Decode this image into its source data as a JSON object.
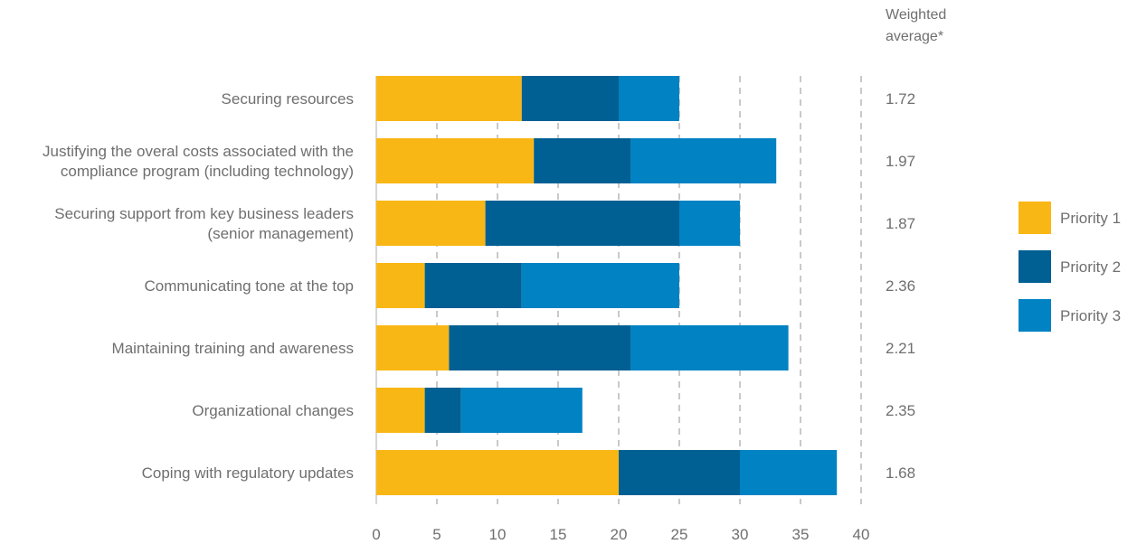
{
  "chart_data": {
    "type": "bar",
    "orientation": "horizontal",
    "stacked": true,
    "categories": [
      [
        "Securing resources"
      ],
      [
        "Justifying the overal costs associated with the",
        "compliance program (including technology)"
      ],
      [
        "Securing support from key business leaders",
        "(senior management)"
      ],
      [
        "Communicating tone at the top"
      ],
      [
        "Maintaining training and awareness"
      ],
      [
        "Organizational changes"
      ],
      [
        "Coping with regulatory updates"
      ]
    ],
    "series": [
      {
        "name": "Priority 1",
        "color": "#F9B715",
        "values": [
          12,
          13,
          9,
          4,
          6,
          4,
          20
        ]
      },
      {
        "name": "Priority 2",
        "color": "#005F93",
        "values": [
          8,
          8,
          16,
          8,
          15,
          3,
          10
        ]
      },
      {
        "name": "Priority 3",
        "color": "#0082C3",
        "values": [
          5,
          12,
          5,
          13,
          13,
          10,
          8
        ]
      }
    ],
    "xlim": [
      0,
      40
    ],
    "xticks": [
      "0",
      "5",
      "10",
      "15",
      "20",
      "25",
      "30",
      "35",
      "40"
    ],
    "grid": true,
    "legend_position": "right",
    "weighted_average": {
      "header": [
        "Weighted",
        "average*"
      ],
      "values": [
        "1.72",
        "1.97",
        "1.87",
        "2.36",
        "2.21",
        "2.35",
        "1.68"
      ]
    }
  }
}
